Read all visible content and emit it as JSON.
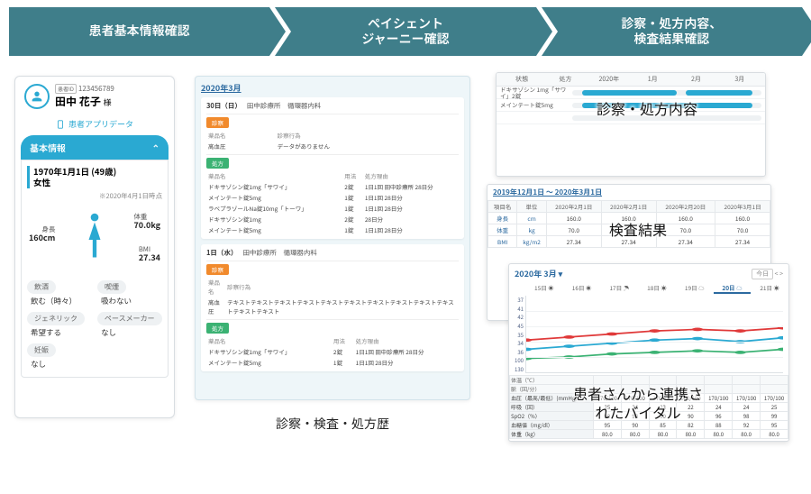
{
  "chevrons": [
    "患者基本情報確認",
    "ペイシェント\nジャーニー確認",
    "診察・処方内容、\n検査結果確認"
  ],
  "patient": {
    "id_label": "患者ID",
    "id": "123456789",
    "name": "田中 花子",
    "honorific": "様",
    "app_data": "患者アプリデータ",
    "tab": "基本情報",
    "dob": "1970年1月1日 (49歳)",
    "sex": "女性",
    "asof": "※2020年4月1日時点",
    "height_label": "身長",
    "height": "160cm",
    "weight_label": "体重",
    "weight": "70.0kg",
    "bmi_label": "BMI",
    "bmi": "27.34",
    "drink_l": "飲酒",
    "drink": "飲む（時々）",
    "smoke_l": "喫煙",
    "smoke": "吸わない",
    "generic_l": "ジェネリック",
    "generic": "希望する",
    "pace_l": "ペースメーカー",
    "pace": "なし",
    "preg_l": "妊娠",
    "preg": "なし"
  },
  "journey": {
    "month": "2020年3月",
    "caption": "診察・検査・処方歴",
    "visits": [
      {
        "date": "30日（日）",
        "clinic": "田中診療所　循環器内科",
        "diag": {
          "tag": "診察",
          "head": [
            "薬品名",
            "診察行為"
          ],
          "rows": [
            [
              "高血圧",
              "データがありません"
            ]
          ]
        },
        "rx": {
          "tag": "処方",
          "head": [
            "薬品名",
            "用法",
            "処方理由"
          ],
          "rows": [
            [
              "ドキサゾシン錠1mg「サワイ」",
              "2錠",
              "1日1回  田中診療所  28日分"
            ],
            [
              "メインテート錠5mg",
              "1錠",
              "1日1回  28日分"
            ],
            [
              "ラベプラゾールNa錠10mg「トーワ」",
              "1錠",
              "1日1回  28日分"
            ],
            [
              "ドキサゾシン錠1mg",
              "2錠",
              "28日分"
            ],
            [
              "メインテート錠5mg",
              "1錠",
              "1日1回  28日分"
            ]
          ]
        }
      },
      {
        "date": "1日（水）",
        "clinic": "田中診療所　循環器内科",
        "diag": {
          "tag": "診察",
          "head": [
            "薬品名",
            "診察行為"
          ],
          "rows": [
            [
              "高血圧",
              "テキストテキストテキストテキストテキストテキストテキストテキストテキストテキストテキストテキスト"
            ]
          ]
        },
        "rx": {
          "tag": "処方",
          "head": [
            "薬品名",
            "用法",
            "処方理由"
          ],
          "rows": [
            [
              "ドキサゾシン錠1mg「サワイ」",
              "2錠",
              "1日1回  田中診療所  28日分"
            ],
            [
              "メインテート錠5mg",
              "1錠",
              "1日1回  28日分"
            ]
          ]
        }
      }
    ]
  },
  "shot1": {
    "title": "診察・処方内容",
    "header": [
      "状態",
      "処方",
      "2020年",
      "1月",
      "2月",
      "3月"
    ],
    "rows": [
      {
        "label": "ドキサゾシン 1mg「サワイ」2錠",
        "color": "#2aa9d2",
        "seg": [
          [
            5,
            55
          ],
          [
            60,
            95
          ]
        ]
      },
      {
        "label": "メインテート錠5mg",
        "color": "#2aa9d2",
        "seg": [
          [
            5,
            95
          ]
        ]
      }
    ]
  },
  "shot2": {
    "title": "検査結果",
    "period": "2019年12月1日 〜 2020年3月1日",
    "cols": [
      "項目名",
      "単位",
      "2020年2月1日",
      "2020年2月1日",
      "2020年2月20日",
      "2020年3月1日"
    ],
    "rows": [
      [
        "身長",
        "cm",
        "160.0",
        "160.0",
        "160.0",
        "160.0"
      ],
      [
        "体重",
        "kg",
        "70.0",
        "",
        "70.0",
        "70.0"
      ],
      [
        "BMI",
        "kg/m2",
        "27.34",
        "27.34",
        "27.34",
        "27.34"
      ]
    ]
  },
  "shot3": {
    "title1": "患者さんから連携さ",
    "title2": "れたバイタル",
    "period": "2020年 3月 ▾",
    "today_label": "今日",
    "days": [
      "15日 ☀",
      "16日 ☀",
      "17日 ☂",
      "18日 ☀",
      "19日 ☁",
      "20日 ☁",
      "21日 ☀"
    ],
    "today_index": 5,
    "y": [
      37,
      41,
      42,
      45,
      35,
      34,
      36,
      100,
      130
    ],
    "series": [
      {
        "color": "#e03a3a",
        "pts": [
          58,
          54,
          50,
          46,
          44,
          46,
          42
        ]
      },
      {
        "color": "#2aa9d2",
        "pts": [
          70,
          66,
          62,
          58,
          56,
          60,
          55
        ]
      },
      {
        "color": "#3bb273",
        "pts": [
          82,
          80,
          76,
          74,
          72,
          74,
          70
        ]
      }
    ],
    "table": {
      "group1": "体温（℃）",
      "group2": "脈（回/分）",
      "rows": [
        [
          "血圧（最高/最低）(mmHg)",
          "170/100",
          "170/100",
          "170/100",
          "170/100",
          "170/100",
          "170/100",
          "170/100"
        ],
        [
          "呼吸（回）",
          "25",
          "24",
          "23",
          "22",
          "24",
          "24",
          "25"
        ],
        [
          "SpO2（%）",
          "99",
          "98",
          "80",
          "90",
          "96",
          "98",
          "99"
        ],
        [
          "血糖値（mg/dl）",
          "95",
          "90",
          "85",
          "82",
          "88",
          "92",
          "95"
        ],
        [
          "体重（kg）",
          "80.0",
          "80.0",
          "80.0",
          "80.0",
          "80.0",
          "80.0",
          "80.0"
        ]
      ]
    }
  }
}
